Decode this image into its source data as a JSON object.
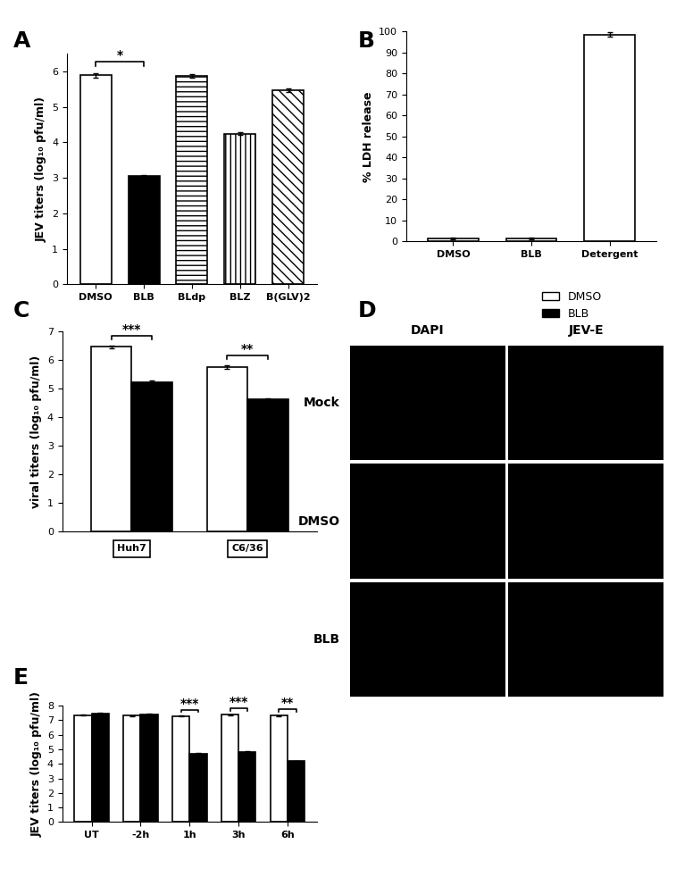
{
  "chart_data": [
    {
      "type": "bar",
      "title": "A",
      "categories": [
        "DMSO",
        "BLB",
        "BLdp",
        "BLZ",
        "B(GLV)2"
      ],
      "values": [
        5.9,
        3.05,
        5.87,
        4.25,
        5.48
      ],
      "errors": [
        0.06,
        0.03,
        0.05,
        0.03,
        0.05
      ],
      "colors": [
        "#ffffff",
        "#000000",
        "#ffffff",
        "#ffffff",
        "#ffffff"
      ],
      "y_label": "JEV titers (log₁₀ pfu/ml)",
      "ylim": [
        0,
        6.5
      ],
      "yticks": [
        0,
        1,
        2,
        3,
        4,
        5,
        6
      ],
      "annotations": [
        {
          "text": "*",
          "categories": [
            "DMSO",
            "BLB"
          ]
        }
      ]
    },
    {
      "type": "bar",
      "title": "B",
      "categories": [
        "DMSO",
        "BLB",
        "Detergent"
      ],
      "values": [
        1.5,
        1.5,
        98.5
      ],
      "errors": [
        0.5,
        0.5,
        1.2
      ],
      "colors": [
        "#ffffff",
        "#ffffff",
        "#ffffff"
      ],
      "y_label": "% LDH release",
      "ylim": [
        0,
        100
      ],
      "yticks": [
        0,
        10,
        20,
        30,
        40,
        50,
        60,
        70,
        80,
        90,
        100
      ]
    },
    {
      "type": "bar",
      "title": "C",
      "categories": [
        "Huh7",
        "C6/36"
      ],
      "series": [
        {
          "name": "DMSO",
          "color": "#ffffff",
          "values": [
            6.45,
            5.75
          ],
          "errors": [
            0.05,
            0.06
          ]
        },
        {
          "name": "BLB",
          "color": "#000000",
          "values": [
            5.22,
            4.62
          ],
          "errors": [
            0.06,
            0.05
          ]
        }
      ],
      "y_label": "viral titers (log₁₀ pfu/ml)",
      "ylim": [
        0,
        7
      ],
      "yticks": [
        0,
        1,
        2,
        3,
        4,
        5,
        6,
        7
      ],
      "legend": "upper right",
      "annotations": [
        {
          "text": "***",
          "category": "Huh7"
        },
        {
          "text": "**",
          "category": "C6/36"
        }
      ]
    },
    {
      "type": "image_grid",
      "title": "D",
      "columns": [
        "DAPI",
        "JEV-E"
      ],
      "rows": [
        "Mock",
        "DMSO",
        "BLB"
      ]
    },
    {
      "type": "bar",
      "title": "E",
      "categories": [
        "UT",
        "-2h",
        "1h",
        "3h",
        "6h"
      ],
      "series": [
        {
          "color": "#ffffff",
          "values": [
            7.35,
            7.32,
            7.28,
            7.38,
            7.3
          ],
          "errors": [
            0.04,
            0.04,
            0.04,
            0.03,
            0.04
          ]
        },
        {
          "color": "#000000",
          "values": [
            7.45,
            7.42,
            4.72,
            4.82,
            4.18
          ],
          "errors": [
            0.04,
            0.03,
            0.05,
            0.04,
            0.03
          ]
        }
      ],
      "y_label": "JEV titers (log₁₀ pfu/ml)",
      "ylim": [
        0,
        8
      ],
      "yticks": [
        0,
        1,
        2,
        3,
        4,
        5,
        6,
        7,
        8
      ],
      "annotations": [
        {
          "text": "***",
          "category": "1h"
        },
        {
          "text": "***",
          "category": "3h"
        },
        {
          "text": "**",
          "category": "6h"
        }
      ]
    }
  ]
}
